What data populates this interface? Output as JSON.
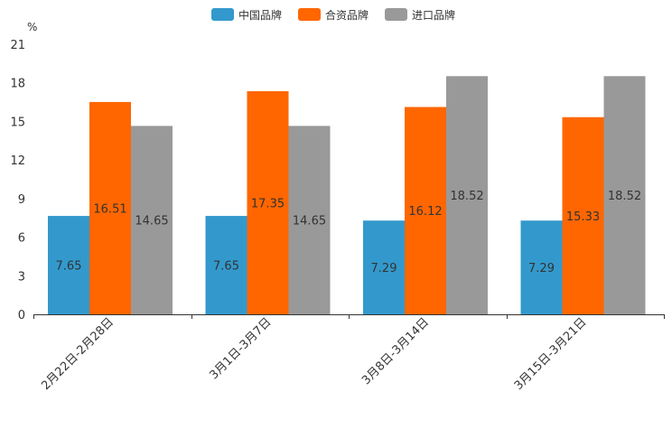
{
  "chart_data": {
    "type": "bar",
    "title": "",
    "xlabel": "",
    "ylabel": "%",
    "ylim": [
      0,
      21
    ],
    "yticks": [
      0,
      3,
      6,
      9,
      12,
      15,
      18,
      21
    ],
    "categories": [
      "2月22日-2月28日",
      "3月1日-3月7日",
      "3月8日-3月14日",
      "3月15日-3月21日"
    ],
    "series": [
      {
        "name": "中国品牌",
        "color": "#3399cc",
        "values": [
          7.65,
          7.65,
          7.29,
          7.29
        ]
      },
      {
        "name": "合资品牌",
        "color": "#ff6600",
        "values": [
          16.51,
          17.35,
          16.12,
          15.33
        ]
      },
      {
        "name": "进口品牌",
        "color": "#999999",
        "values": [
          14.65,
          14.65,
          18.52,
          18.52
        ]
      }
    ],
    "legend": "top-center"
  }
}
